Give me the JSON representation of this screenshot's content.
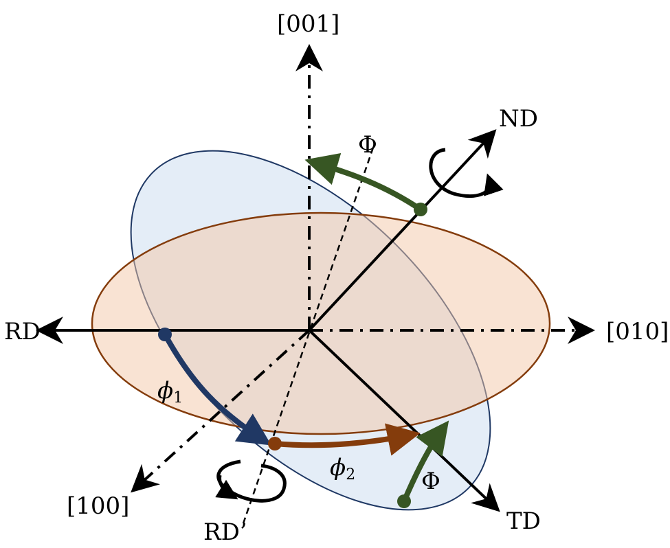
{
  "axes": {
    "rd": "RD",
    "td": "TD",
    "nd": "ND",
    "rd_prime": "RD’",
    "crystal_x": "[100]",
    "crystal_y": "[010]",
    "crystal_z": "[001]"
  },
  "angles": {
    "phi1_symbol": "ϕ",
    "phi1_sub": "1",
    "phi2_symbol": "ϕ",
    "phi2_sub": "2",
    "big_phi_top": "Φ",
    "big_phi_bottom": "Φ"
  },
  "colors": {
    "blue_ellipse_fill": "#dfeaf6",
    "blue_ellipse_stroke": "#1f3864",
    "orange_ellipse_fill": "#f6d5bd",
    "orange_ellipse_stroke": "#843c0c",
    "phi1_arrow": "#203864",
    "phi2_arrow": "#843c0c",
    "big_phi_arrow": "#375623",
    "axis": "#000000"
  }
}
